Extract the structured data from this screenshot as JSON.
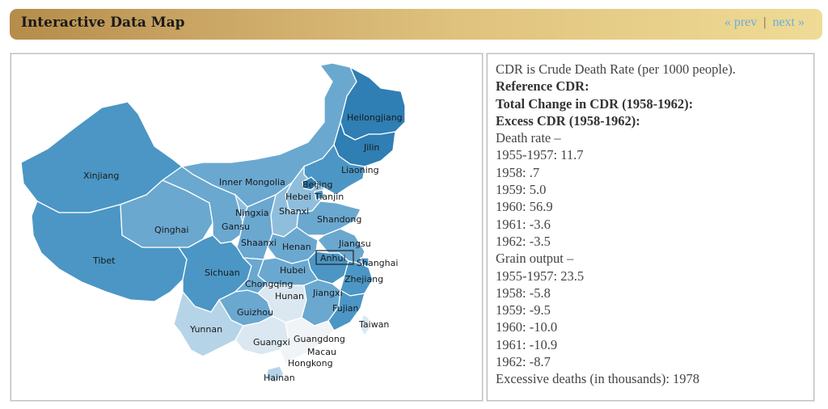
{
  "header": {
    "title": "Interactive Data Map",
    "prev_label": "« prev",
    "separator": "|",
    "next_label": "next »"
  },
  "colors": {
    "header_start": "#b58c4a",
    "header_end": "#efdb95",
    "nav_link": "#6aaede",
    "shade_darkest": "#2f7eb4",
    "shade_dark": "#4b96c5",
    "shade_mid": "#6aa8d0",
    "shade_light": "#8fbedc",
    "shade_lighter": "#b6d4e8",
    "shade_lightest": "#dbe8f1",
    "shade_white": "#f1f4f6"
  },
  "map": {
    "labels": {
      "heilongjiang": "Heilongjiang",
      "jilin": "Jilin",
      "liaoning": "Liaoning",
      "inner_mongolia": "Inner Mongolia",
      "beijing": "Beijing",
      "tianjin": "Tianjin",
      "hebei": "Hebei",
      "xinjiang": "Xinjiang",
      "qinghai": "Qinghai",
      "gansu": "Gansu",
      "ningxia": "Ningxia",
      "shanxi": "Shanxi",
      "shandong": "Shandong",
      "shaanxi": "Shaanxi",
      "henan": "Henan",
      "jiangsu": "Jiangsu",
      "anhui": "Anhui",
      "shanghai": "Shanghai",
      "tibet": "Tibet",
      "sichuan": "Sichuan",
      "hubei": "Hubei",
      "zhejiang": "Zhejiang",
      "chongqing": "Chongqing",
      "hunan": "Hunan",
      "jiangxi": "Jiangxi",
      "guizhou": "Guizhou",
      "fujian": "Fujian",
      "taiwan": "Taiwan",
      "yunnan": "Yunnan",
      "guangxi": "Guangxi",
      "guangdong": "Guangdong",
      "macau": "Macau",
      "hongkong": "Hongkong",
      "hainan": "Hainan"
    },
    "selected_province": "Anhui"
  },
  "info": {
    "lines": [
      {
        "text": "CDR is Crude Death Rate (per 1000 people).",
        "bold": false
      },
      {
        "text": "Reference CDR:",
        "bold": true
      },
      {
        "text": "Total Change in CDR (1958-1962):",
        "bold": true
      },
      {
        "text": "Excess CDR (1958-1962):",
        "bold": true
      },
      {
        "text": "Death rate –",
        "bold": false
      },
      {
        "text": "1955-1957: 11.7",
        "bold": false
      },
      {
        "text": "1958: .7",
        "bold": false
      },
      {
        "text": "1959: 5.0",
        "bold": false
      },
      {
        "text": "1960: 56.9",
        "bold": false
      },
      {
        "text": "1961: -3.6",
        "bold": false
      },
      {
        "text": "1962: -3.5",
        "bold": false
      },
      {
        "text": "Grain output –",
        "bold": false
      },
      {
        "text": "1955-1957: 23.5",
        "bold": false
      },
      {
        "text": "1958: -5.8",
        "bold": false
      },
      {
        "text": "1959: -9.5",
        "bold": false
      },
      {
        "text": "1960: -10.0",
        "bold": false
      },
      {
        "text": "1961: -10.9",
        "bold": false
      },
      {
        "text": "1962: -8.7",
        "bold": false
      },
      {
        "text": "Excessive deaths (in thousands): 1978",
        "bold": false
      }
    ]
  }
}
